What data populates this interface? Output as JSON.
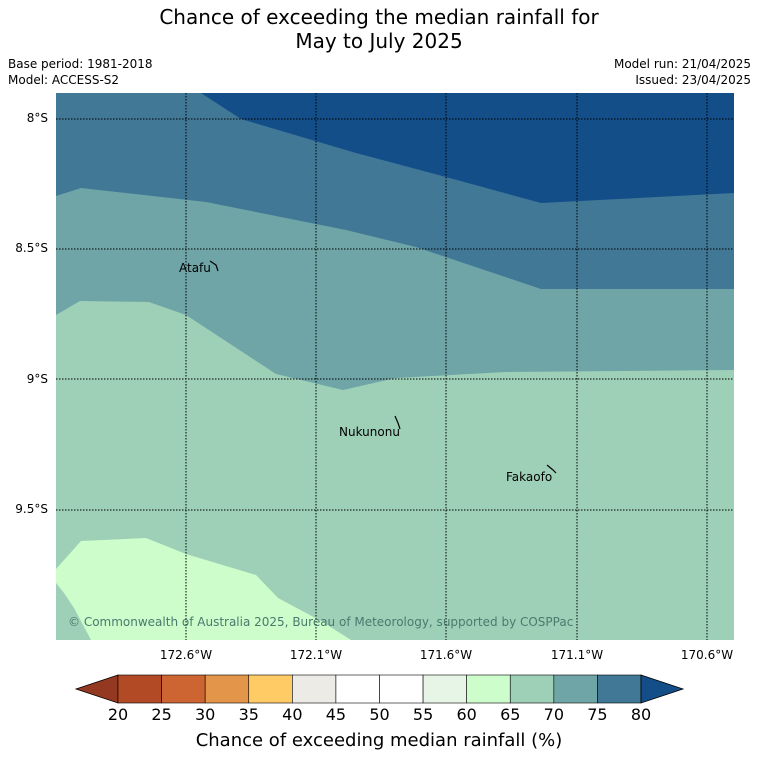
{
  "title": {
    "line1": "Chance of exceeding the median rainfall for",
    "line2": "May to July 2025"
  },
  "meta": {
    "base_period": "Base period: 1981-2018",
    "model": "Model: ACCESS-S2",
    "model_run": "Model run: 21/04/2025",
    "issued": "Issued: 23/04/2025"
  },
  "map": {
    "lat_labels": [
      "8°S",
      "8.5°S",
      "9°S",
      "9.5°S"
    ],
    "lon_labels": [
      "172.6°W",
      "172.1°W",
      "171.6°W",
      "171.1°W",
      "170.6°W"
    ],
    "places": [
      {
        "name": "Atafu"
      },
      {
        "name": "Nukunonu"
      },
      {
        "name": "Fakaofo"
      }
    ],
    "copyright": "© Commonwealth of Australia 2025, Bureau of Meteorology, supported by COSPPac"
  },
  "colorbar": {
    "ticks": [
      "20",
      "25",
      "30",
      "35",
      "40",
      "45",
      "50",
      "55",
      "60",
      "65",
      "70",
      "75",
      "80"
    ],
    "colors": [
      "#b24a25",
      "#cd6533",
      "#e39549",
      "#fecb65",
      "#ecebe6",
      "#ffffff",
      "#ffffff",
      "#e7f5e6",
      "#ccfdcb",
      "#9ed0b8",
      "#6fa5a6",
      "#417896"
    ],
    "under_color": "#943821",
    "over_color": "#134e89",
    "label": "Chance of exceeding median rainfall (%)"
  }
}
